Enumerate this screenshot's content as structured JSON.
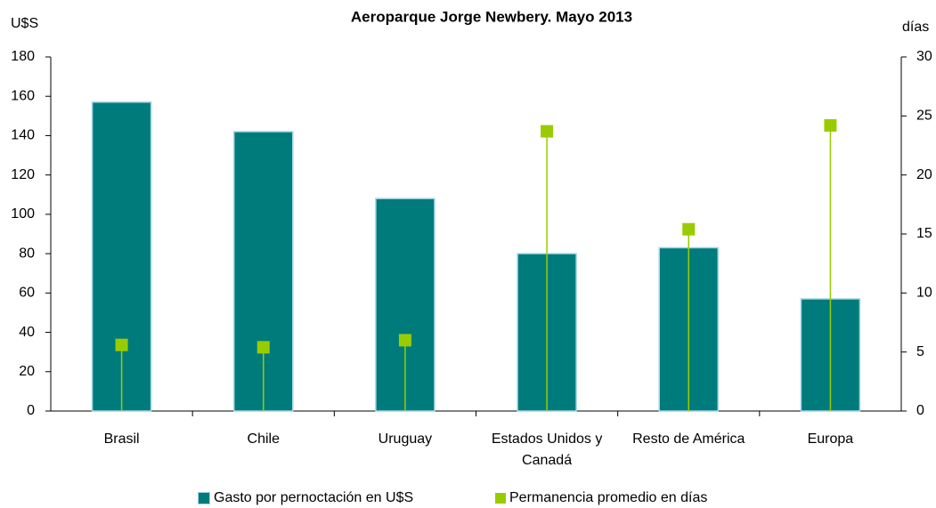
{
  "chart_data": {
    "type": "bar",
    "title": "Aeroparque Jorge Newbery. Mayo 2013",
    "y_label": "U$S",
    "y2_label": "días",
    "categories": [
      "Brasil",
      "Chile",
      "Uruguay",
      "Estados Unidos y Canadá",
      "Resto de América",
      "Europa"
    ],
    "series": [
      {
        "name": "Gasto por pernoctación en U$S",
        "color": "#007b7b",
        "values": [
          157,
          142,
          108,
          80,
          83,
          57
        ]
      },
      {
        "name": "Permanencia promedio en días",
        "color": "#99cc00",
        "axis": "y2",
        "type": "lollipop",
        "values": [
          5.6,
          5.4,
          6.0,
          23.7,
          15.4,
          24.2
        ]
      }
    ],
    "ylim": [
      0,
      180
    ],
    "yticks": [
      0,
      20,
      40,
      60,
      80,
      100,
      120,
      140,
      160,
      180
    ],
    "y2lim": [
      0,
      30
    ],
    "y2ticks": [
      0,
      5,
      10,
      15,
      20,
      25,
      30
    ],
    "legend": "bottom"
  }
}
